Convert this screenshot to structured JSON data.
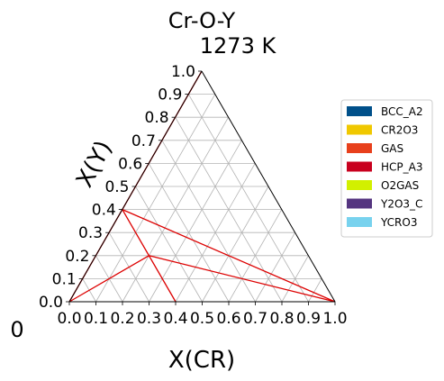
{
  "chart_data": {
    "type": "ternary",
    "title": "Cr-O-Y",
    "subtitle": "1273  K",
    "xlabel": "X(CR)",
    "ylabel": "X(Y)",
    "corner_label": "0",
    "x_ticks": [
      "0.0",
      "0.1",
      "0.2",
      "0.3",
      "0.4",
      "0.5",
      "0.6",
      "0.7",
      "0.8",
      "0.9",
      "1.0"
    ],
    "y_ticks": [
      "0.0",
      "0.1",
      "0.2",
      "0.3",
      "0.4",
      "0.5",
      "0.6",
      "0.7",
      "0.8",
      "0.9",
      "1.0"
    ],
    "xlim": [
      0,
      1
    ],
    "ylim": [
      0,
      1
    ],
    "grid": true,
    "legend_position": "right",
    "legend": [
      {
        "name": "BCC_A2",
        "color": "#00508a"
      },
      {
        "name": "CR2O3",
        "color": "#f0c800"
      },
      {
        "name": "GAS",
        "color": "#e8401c"
      },
      {
        "name": "HCP_A3",
        "color": "#c8001e"
      },
      {
        "name": "O2GAS",
        "color": "#d2f000"
      },
      {
        "name": "Y2O3_C",
        "color": "#553580"
      },
      {
        "name": "YCRO3",
        "color": "#78d2ee"
      }
    ],
    "tie_line_color": "#dd0000",
    "tie_lines": [
      {
        "from": [
          0.0,
          0.4
        ],
        "to": [
          1.0,
          0.0
        ]
      },
      {
        "from": [
          0.0,
          0.4
        ],
        "to": [
          0.4,
          0.0
        ]
      },
      {
        "from": [
          0.0,
          0.0
        ],
        "to": [
          0.2,
          0.2
        ]
      },
      {
        "from": [
          0.2,
          0.2
        ],
        "to": [
          1.0,
          0.0
        ]
      },
      {
        "from": [
          0.0,
          0.0
        ],
        "to": [
          0.0,
          1.0
        ]
      }
    ]
  }
}
